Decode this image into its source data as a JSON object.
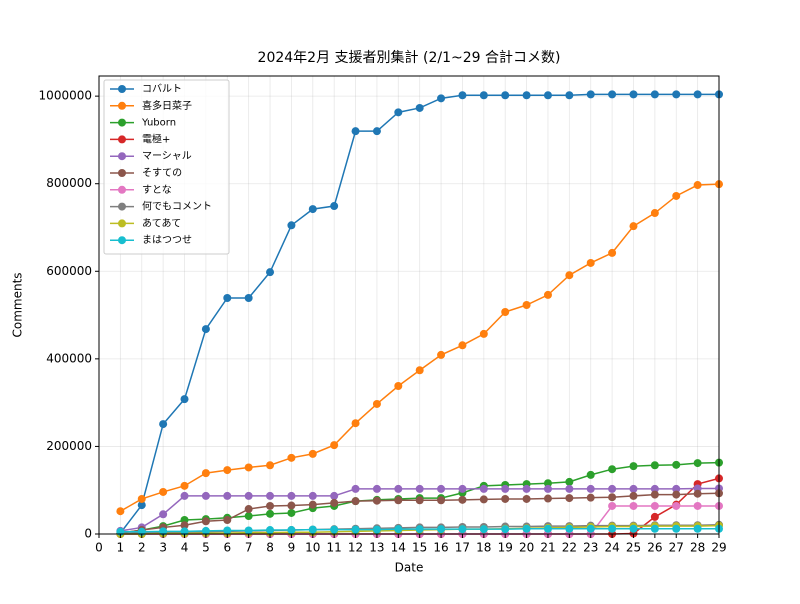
{
  "chart_data": {
    "type": "line",
    "title": "2024年2月 支援者別集計 (2/1~29 合計コメ数)",
    "x_label": "Date",
    "y_label": "Comments",
    "x": [
      1,
      2,
      3,
      4,
      5,
      6,
      7,
      8,
      9,
      10,
      11,
      12,
      13,
      14,
      15,
      16,
      17,
      18,
      19,
      20,
      21,
      22,
      23,
      24,
      25,
      26,
      27,
      28,
      29
    ],
    "xlim": [
      0,
      29
    ],
    "xticks": [
      0,
      1,
      2,
      3,
      4,
      5,
      6,
      7,
      8,
      9,
      10,
      11,
      12,
      13,
      14,
      15,
      16,
      17,
      18,
      19,
      20,
      21,
      22,
      23,
      24,
      25,
      26,
      27,
      28,
      29
    ],
    "ylim": [
      0,
      1046000
    ],
    "yticks": [
      0,
      200000,
      400000,
      600000,
      800000,
      1000000
    ],
    "grid": true,
    "legend": "upper left",
    "series": [
      {
        "name": "コバルト",
        "color": "#1f77b4",
        "values": [
          2000,
          66000,
          251000,
          308000,
          468000,
          539000,
          539000,
          598000,
          705000,
          742000,
          749000,
          920000,
          920000,
          963000,
          973000,
          995000,
          1002000,
          1002000,
          1002000,
          1002000,
          1002000,
          1002000,
          1004000,
          1004000,
          1004000,
          1004000,
          1004000,
          1004000,
          1004000
        ]
      },
      {
        "name": "喜多日菜子",
        "color": "#ff7f0e",
        "values": [
          52000,
          80000,
          96000,
          110000,
          139000,
          146000,
          152000,
          157000,
          174000,
          183000,
          203000,
          253000,
          297000,
          338000,
          374000,
          409000,
          431000,
          457000,
          507000,
          523000,
          546000,
          591000,
          619000,
          642000,
          703000,
          733000,
          772000,
          797000,
          799000
        ]
      },
      {
        "name": "Yuborn",
        "color": "#2ca02c",
        "values": [
          2000,
          9000,
          18000,
          32000,
          34000,
          37000,
          41000,
          46000,
          48000,
          59000,
          64000,
          75000,
          78000,
          80000,
          82000,
          82000,
          94000,
          110000,
          112000,
          114000,
          116000,
          119000,
          135000,
          148000,
          155000,
          157000,
          158000,
          162000,
          163000
        ]
      },
      {
        "name": "電極+",
        "color": "#d62728",
        "values": [
          0,
          0,
          0,
          0,
          0,
          0,
          0,
          0,
          0,
          0,
          0,
          0,
          0,
          0,
          0,
          0,
          0,
          0,
          0,
          0,
          0,
          0,
          0,
          0,
          1000,
          39000,
          67000,
          114000,
          127000
        ]
      },
      {
        "name": "マーシャル",
        "color": "#9467bd",
        "values": [
          7000,
          15000,
          45000,
          87000,
          87000,
          87000,
          87000,
          87000,
          87000,
          87000,
          87000,
          103000,
          103000,
          103000,
          103000,
          103000,
          103000,
          103000,
          103000,
          103000,
          103000,
          103000,
          103000,
          103000,
          103000,
          103000,
          103000,
          104000,
          104000
        ]
      },
      {
        "name": "そすての",
        "color": "#8c564b",
        "values": [
          2000,
          9000,
          15000,
          20000,
          29000,
          32000,
          57000,
          64000,
          65000,
          67000,
          71000,
          75000,
          76000,
          77000,
          77000,
          77000,
          78000,
          79000,
          80000,
          80000,
          81000,
          82000,
          83000,
          84000,
          87000,
          90000,
          90000,
          92000,
          93000
        ]
      },
      {
        "name": "すとな",
        "color": "#e377c2",
        "values": [
          0,
          0,
          0,
          0,
          0,
          0,
          0,
          0,
          0,
          0,
          0,
          0,
          0,
          0,
          0,
          0,
          0,
          0,
          0,
          0,
          0,
          0,
          0,
          64000,
          64000,
          64000,
          64000,
          64000,
          64000
        ]
      },
      {
        "name": "何でもコメント",
        "color": "#7f7f7f",
        "values": [
          1000,
          2000,
          3000,
          4000,
          5000,
          6000,
          7000,
          8000,
          9000,
          10000,
          11000,
          12000,
          13000,
          14000,
          15000,
          15000,
          16000,
          16000,
          17000,
          17000,
          18000,
          18000,
          19000,
          19000,
          19000,
          20000,
          20000,
          20000,
          21000
        ]
      },
      {
        "name": "あてあて",
        "color": "#bcbd22",
        "values": [
          0,
          0,
          1000,
          1000,
          2000,
          2000,
          3000,
          3000,
          4000,
          4000,
          5000,
          6000,
          7000,
          8000,
          9000,
          10000,
          11000,
          11000,
          12000,
          13000,
          14000,
          15000,
          16000,
          17000,
          17000,
          18000,
          18000,
          18000,
          19000
        ]
      },
      {
        "name": "まはつつせ",
        "color": "#17becf",
        "values": [
          5000,
          5000,
          6000,
          6000,
          7000,
          8000,
          8000,
          9000,
          9000,
          10000,
          10000,
          10000,
          10000,
          11000,
          11000,
          11000,
          11000,
          11000,
          11000,
          12000,
          12000,
          12000,
          12000,
          12000,
          12000,
          12000,
          12000,
          12000,
          12000
        ]
      }
    ]
  }
}
